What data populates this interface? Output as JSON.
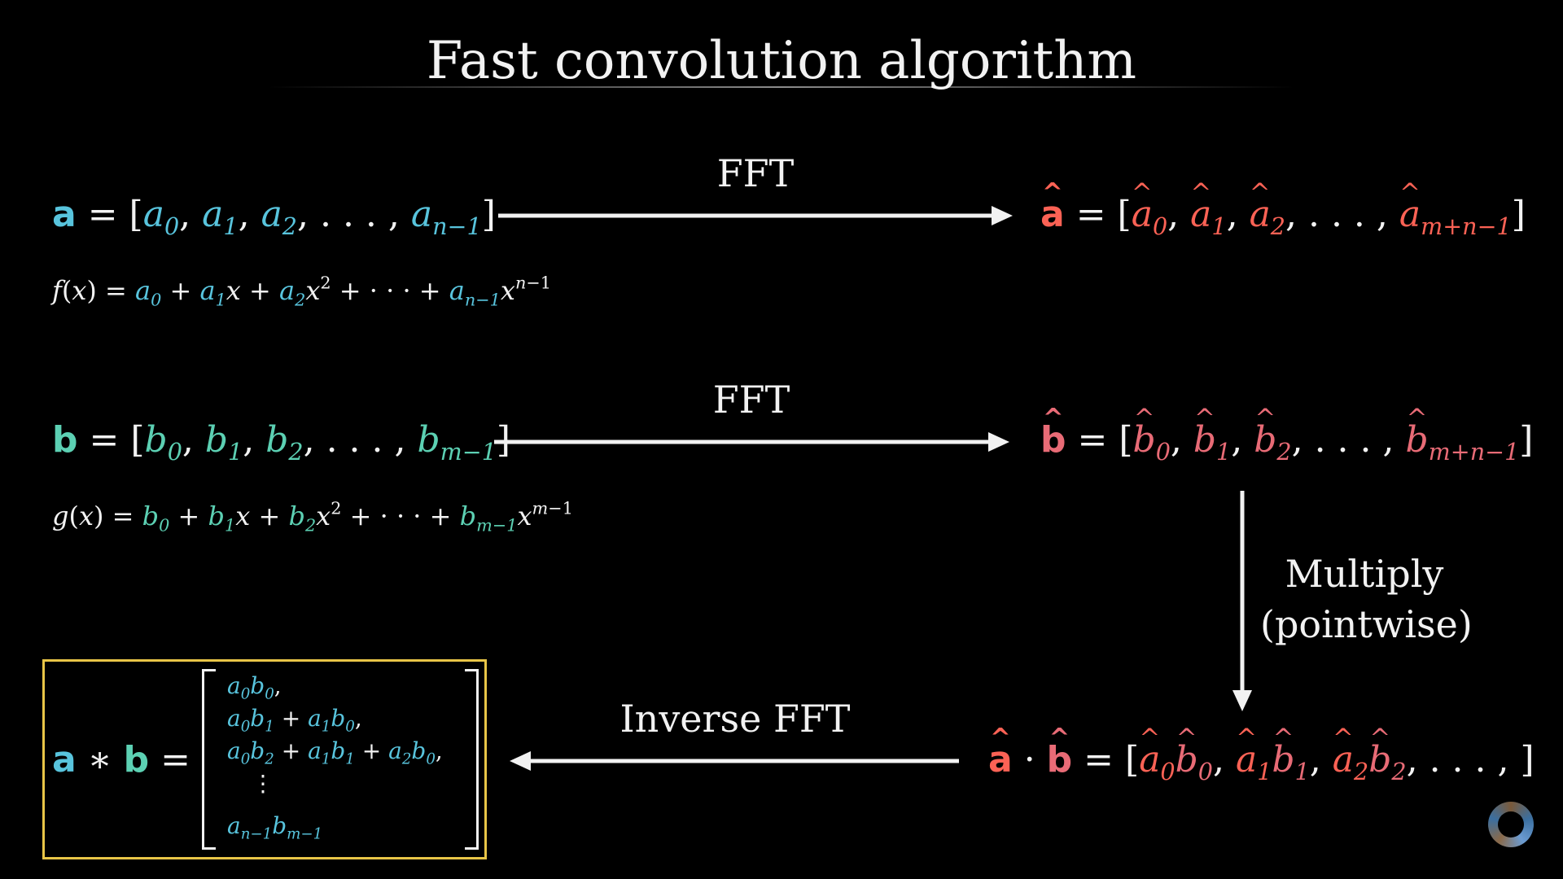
{
  "title": "Fast convolution algorithm",
  "labels": {
    "fft_top": "FFT",
    "fft_mid": "FFT",
    "inverse_fft": "Inverse FFT",
    "multiply_line1": "Multiply",
    "multiply_line2": "(pointwise)"
  },
  "colors": {
    "a_vector": "#58c4dd",
    "b_vector": "#5cd0b3",
    "a_hat": "#fc6255",
    "b_hat": "#e86b76",
    "result_box": "#e8c547",
    "arrows": "#f2f2f2"
  },
  "equations": {
    "a_def": "a = [a0, a1, a2, ..., an-1]",
    "f_def": "f(x) = a0 + a1x + a2x^2 + ... + an-1x^(n-1)",
    "b_def": "b = [b0, b1, b2, ..., bm-1]",
    "g_def": "g(x) = b0 + b1x + b2x^2 + ... + bm-1x^(m-1)",
    "a_hat_def": "â = [â0, â1, â2, ..., âm+n-1]",
    "b_hat_def": "b̂ = [b̂0, b̂1, b̂2, ..., b̂m+n-1]",
    "product_def": "â · b̂ = [â0b̂0, â1b̂1, â2b̂2, ..., ]",
    "convolution_lhs": "a * b =",
    "convolution_rows": [
      "a0b0,",
      "a0b1 + a1b0,",
      "a0b2 + a1b1 + a2b0,",
      "⋮",
      "an-1bm-1"
    ]
  },
  "icons": {
    "corner_logo": "3b1b-logo-icon"
  }
}
